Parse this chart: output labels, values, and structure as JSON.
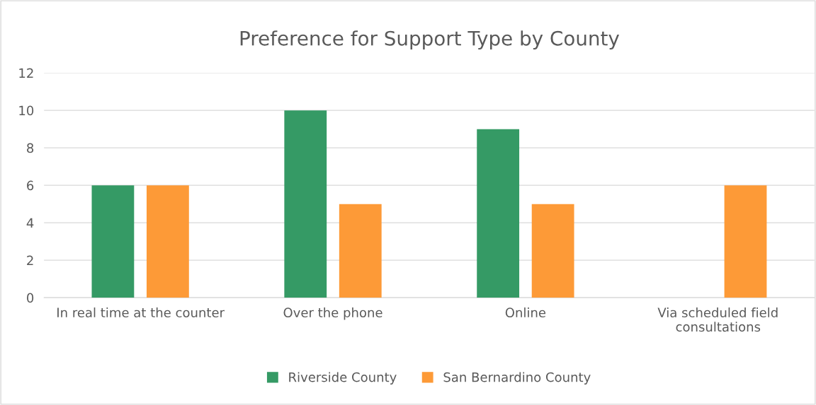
{
  "chart_data": {
    "type": "bar",
    "title": "Preference for Support Type by County",
    "categories": [
      "In real time at the counter",
      "Over the phone",
      "Online",
      "Via scheduled field\nconsultations"
    ],
    "series": [
      {
        "name": "Riverside County",
        "color": "#359a65",
        "values": [
          6,
          10,
          9,
          0
        ]
      },
      {
        "name": "San Bernardino County",
        "color": "#fd9a37",
        "values": [
          6,
          5,
          5,
          6
        ]
      }
    ],
    "ylim": [
      0,
      12
    ],
    "yticks": [
      0,
      2,
      4,
      6,
      8,
      10,
      12
    ],
    "grid": "y",
    "legend": "bottom"
  }
}
